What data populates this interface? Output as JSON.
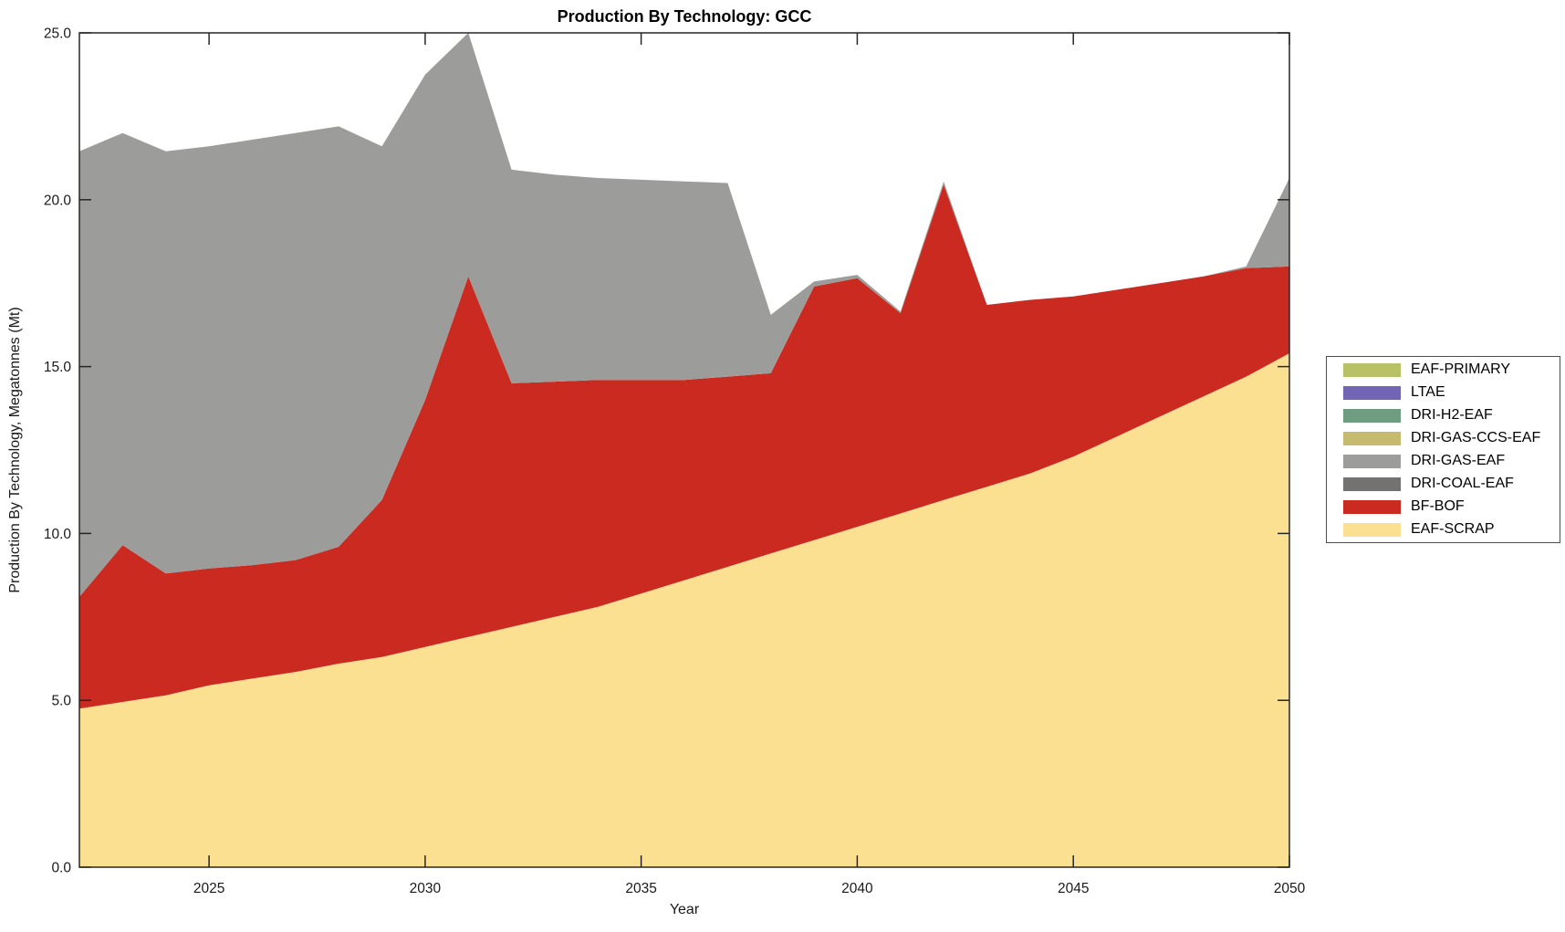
{
  "figure": {
    "title": "Production By Technology: GCC",
    "x_label": "Year",
    "y_label": "Production By Technology, Megatonnes (Mt)"
  },
  "legend": {
    "items": [
      {
        "label": "EAF-PRIMARY",
        "color": "#b9c167"
      },
      {
        "label": "LTAE",
        "color": "#7265b5"
      },
      {
        "label": "DRI-H2-EAF",
        "color": "#6f9d82"
      },
      {
        "label": "DRI-GAS-CCS-EAF",
        "color": "#c6ba6e"
      },
      {
        "label": "DRI-GAS-EAF",
        "color": "#9c9c9a"
      },
      {
        "label": "DRI-COAL-EAF",
        "color": "#737270"
      },
      {
        "label": "BF-BOF",
        "color": "#cb2a20"
      },
      {
        "label": "EAF-SCRAP",
        "color": "#fce092"
      }
    ]
  },
  "chart_data": {
    "type": "area",
    "stacked": true,
    "title": "Production By Technology: GCC",
    "xlabel": "Year",
    "ylabel": "Production By Technology, Megatonnes (Mt)",
    "xlim": [
      2022,
      2050
    ],
    "ylim": [
      0,
      25
    ],
    "grid": false,
    "legend_position": "right-outside",
    "x_ticks": [
      2025,
      2030,
      2035,
      2040,
      2045,
      2050
    ],
    "x_tick_labels": [
      "2025",
      "2030",
      "2035",
      "2040",
      "2045",
      "2050"
    ],
    "y_ticks": [
      0,
      5,
      10,
      15,
      20,
      25
    ],
    "y_tick_labels": [
      "0.0",
      "5.0",
      "10.0",
      "15.0",
      "20.0",
      "25.0"
    ],
    "x": [
      2022,
      2023,
      2024,
      2025,
      2026,
      2027,
      2028,
      2029,
      2030,
      2031,
      2032,
      2033,
      2034,
      2035,
      2036,
      2037,
      2038,
      2039,
      2040,
      2041,
      2042,
      2043,
      2044,
      2045,
      2046,
      2047,
      2048,
      2049,
      2050
    ],
    "series": [
      {
        "name": "EAF-SCRAP",
        "color": "#fce092",
        "values": [
          4.75,
          4.95,
          5.15,
          5.45,
          5.65,
          5.85,
          6.1,
          6.3,
          6.6,
          6.9,
          7.2,
          7.5,
          7.8,
          8.2,
          8.6,
          9.0,
          9.4,
          9.8,
          10.2,
          10.6,
          11.0,
          11.4,
          11.8,
          12.3,
          12.9,
          13.5,
          14.1,
          14.7,
          15.4
        ]
      },
      {
        "name": "BF-BOF",
        "color": "#cb2a20",
        "values": [
          3.35,
          4.7,
          3.65,
          3.5,
          3.4,
          3.35,
          3.5,
          4.7,
          7.4,
          10.8,
          7.3,
          7.05,
          6.8,
          6.4,
          6.0,
          5.7,
          5.4,
          7.6,
          7.45,
          6.0,
          9.45,
          5.45,
          5.2,
          4.8,
          4.4,
          4.0,
          3.6,
          3.25,
          2.6
        ]
      },
      {
        "name": "DRI-COAL-EAF",
        "color": "#737270",
        "values": [
          0,
          0,
          0,
          0,
          0,
          0,
          0,
          0,
          0,
          0,
          0,
          0,
          0,
          0,
          0,
          0,
          0,
          0,
          0,
          0,
          0,
          0,
          0,
          0,
          0,
          0,
          0,
          0,
          0
        ]
      },
      {
        "name": "DRI-GAS-EAF",
        "color": "#9c9c9a",
        "values": [
          13.35,
          12.35,
          12.65,
          12.65,
          12.75,
          12.8,
          12.6,
          10.6,
          9.75,
          7.3,
          6.4,
          6.2,
          6.05,
          6.0,
          5.95,
          5.8,
          1.75,
          0.15,
          0.1,
          0.05,
          0.1,
          0.0,
          0.0,
          0.0,
          0.0,
          0.0,
          0.0,
          0.05,
          2.65
        ]
      },
      {
        "name": "DRI-GAS-CCS-EAF",
        "color": "#c6ba6e",
        "values": [
          0,
          0,
          0,
          0,
          0,
          0,
          0,
          0,
          0,
          0,
          0,
          0,
          0,
          0,
          0,
          0,
          0,
          0,
          0,
          0,
          0,
          0,
          0,
          0,
          0,
          0,
          0,
          0,
          0
        ]
      },
      {
        "name": "DRI-H2-EAF",
        "color": "#6f9d82",
        "values": [
          0,
          0,
          0,
          0,
          0,
          0,
          0,
          0,
          0,
          0,
          0,
          0,
          0,
          0,
          0,
          0,
          0,
          0,
          0,
          0,
          0,
          0,
          0,
          0,
          0,
          0,
          0,
          0,
          0
        ]
      },
      {
        "name": "LTAE",
        "color": "#7265b5",
        "values": [
          0,
          0,
          0,
          0,
          0,
          0,
          0,
          0,
          0,
          0,
          0,
          0,
          0,
          0,
          0,
          0,
          0,
          0,
          0,
          0,
          0,
          0,
          0,
          0,
          0,
          0,
          0,
          0,
          0
        ]
      },
      {
        "name": "EAF-PRIMARY",
        "color": "#b9c167",
        "values": [
          0,
          0,
          0,
          0,
          0,
          0,
          0,
          0,
          0,
          0,
          0,
          0,
          0,
          0,
          0,
          0,
          0,
          0,
          0,
          0,
          0,
          0,
          0,
          0,
          0,
          0,
          0,
          0,
          0
        ]
      }
    ]
  }
}
